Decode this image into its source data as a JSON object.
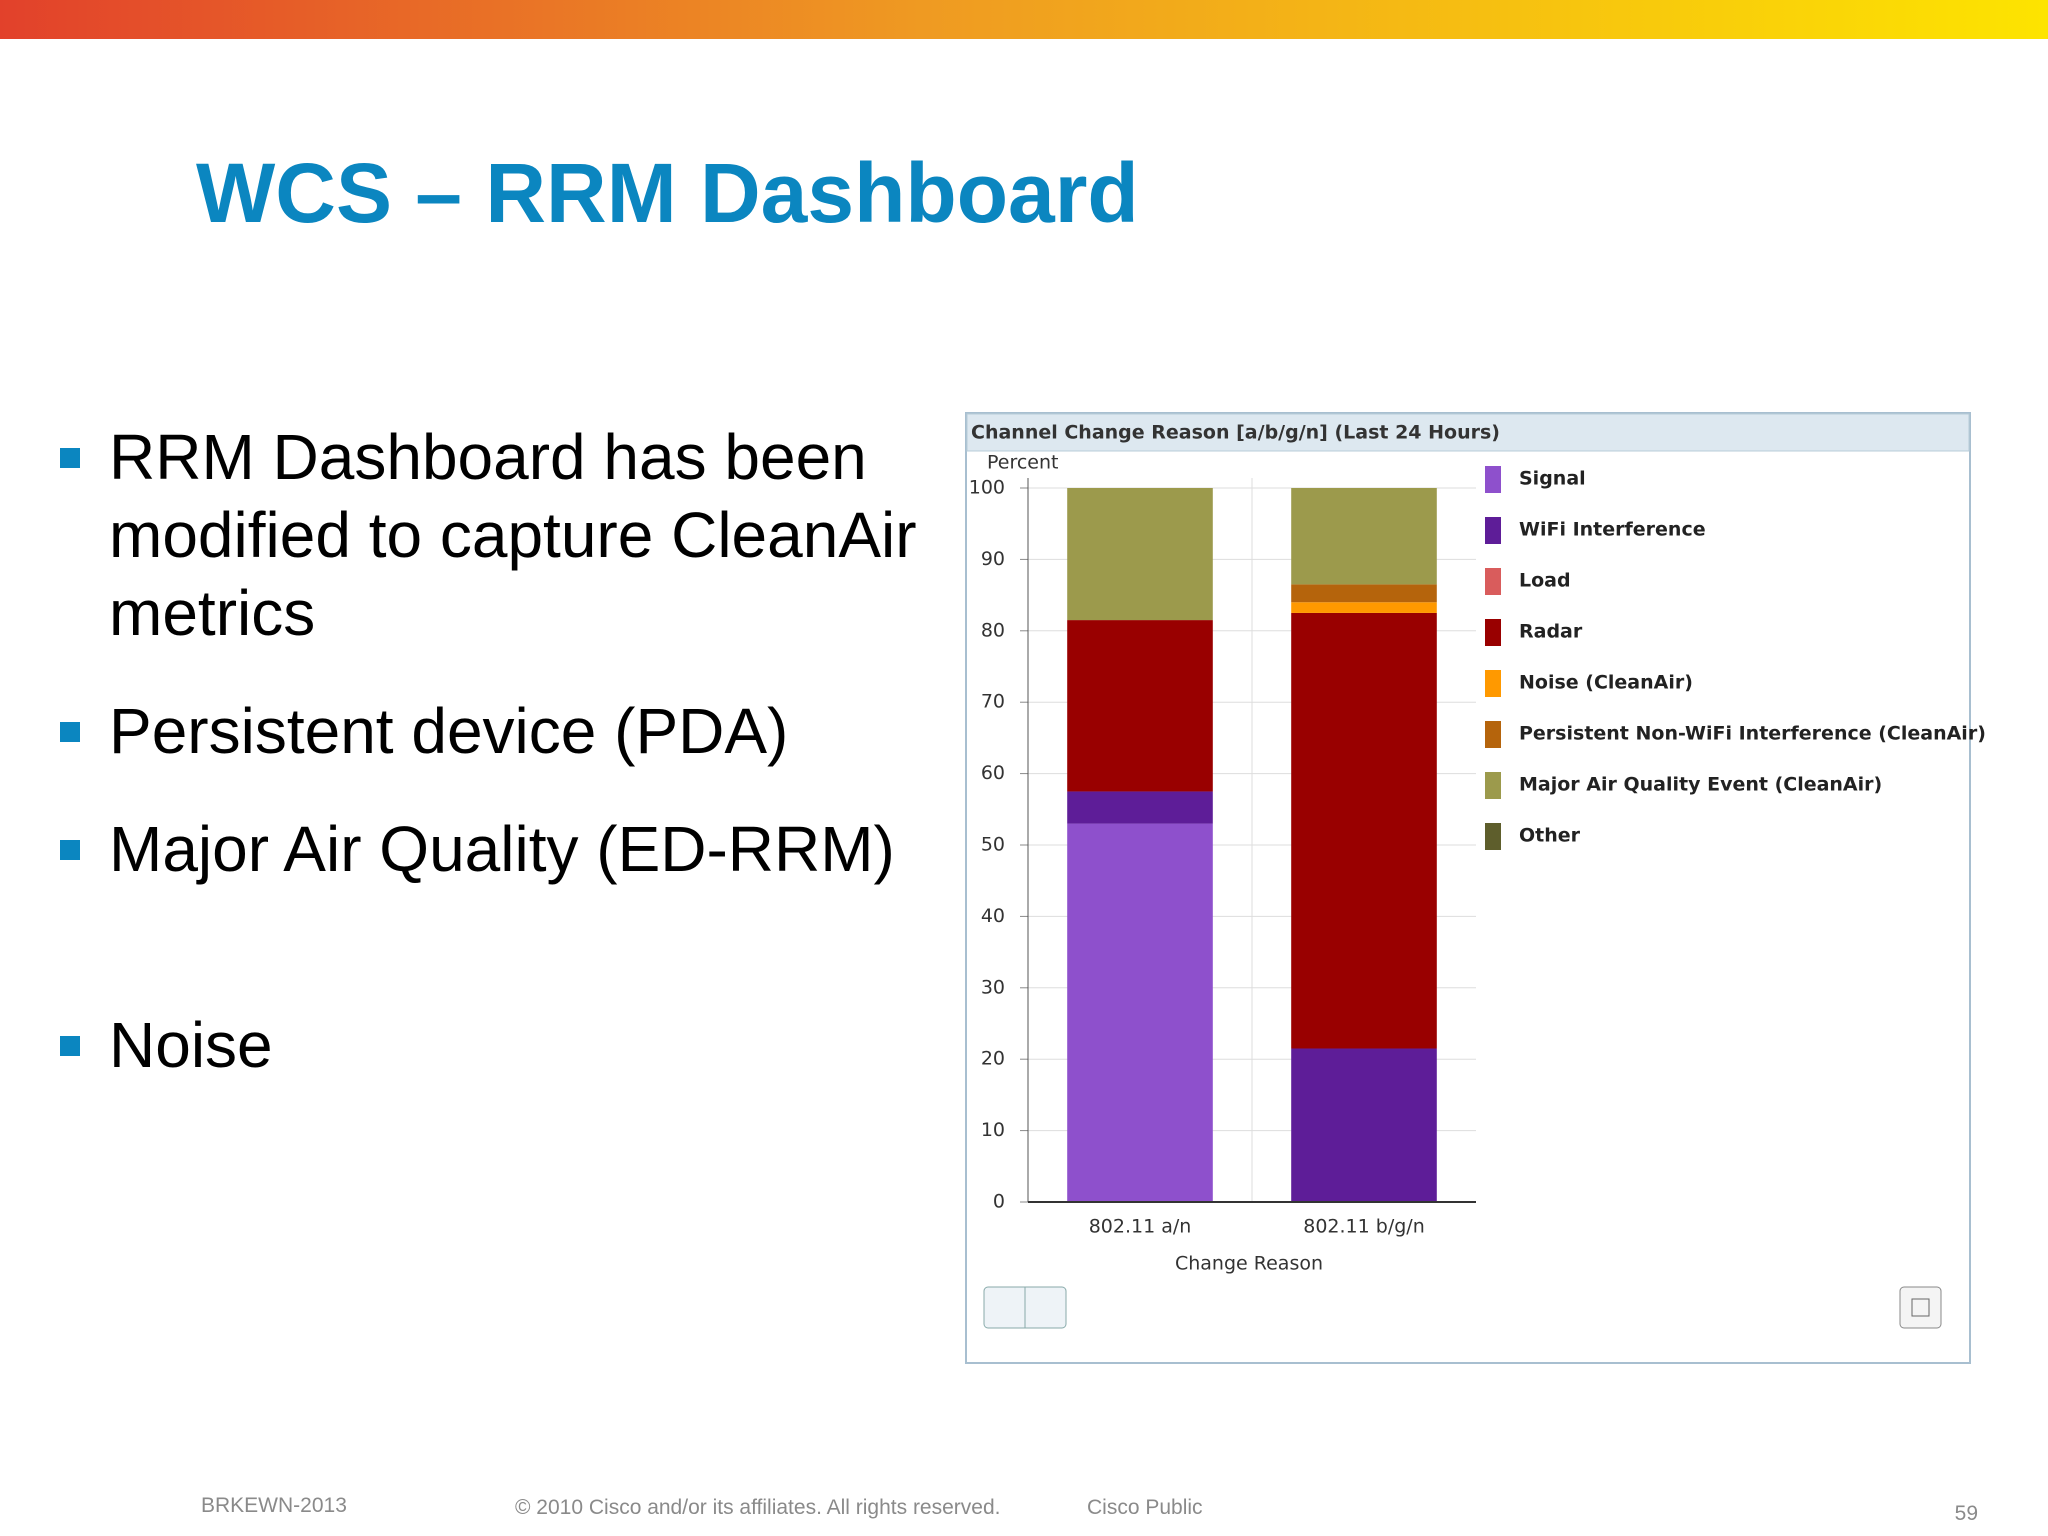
{
  "slide": {
    "title": "WCS – RRM Dashboard",
    "bullets": [
      "RRM Dashboard has been modified to capture CleanAir metrics",
      "Persistent device (PDA)",
      "Major Air Quality (ED-RRM)",
      "Noise"
    ],
    "footer": {
      "session": "BRKEWN-2013",
      "copyright": "© 2010 Cisco and/or its affiliates. All rights reserved.",
      "classification": "Cisco Public",
      "page": "59"
    }
  },
  "chart_data": {
    "type": "stacked-bar",
    "title": "Channel Change Reason [a/b/g/n] (Last 24 Hours)",
    "y_label": "Percent",
    "x_label": "Change Reason",
    "categories": [
      "802.11 a/n",
      "802.11 b/g/n"
    ],
    "series": [
      {
        "name": "Signal",
        "color": "#8e50cc",
        "values": [
          53,
          0
        ]
      },
      {
        "name": "WiFi Interference",
        "color": "#5e1d98",
        "values": [
          4.5,
          21.5
        ]
      },
      {
        "name": "Load",
        "color": "#d95c5c",
        "values": [
          0,
          0
        ]
      },
      {
        "name": "Radar",
        "color": "#990000",
        "values": [
          24,
          61
        ]
      },
      {
        "name": "Noise (CleanAir)",
        "color": "#ff9900",
        "values": [
          0,
          1.5
        ]
      },
      {
        "name": "Persistent Non-WiFi Interference (CleanAir)",
        "color": "#b5640c",
        "values": [
          0,
          2.5
        ]
      },
      {
        "name": "Major Air Quality Event (CleanAir)",
        "color": "#9c9a4c",
        "values": [
          18.5,
          13.5
        ]
      },
      {
        "name": "Other",
        "color": "#5e5e2c",
        "values": [
          0,
          0
        ]
      }
    ],
    "ylim": [
      0,
      100
    ],
    "yticks": [
      0,
      10,
      20,
      30,
      40,
      50,
      60,
      70,
      80,
      90,
      100
    ],
    "grid": true
  }
}
